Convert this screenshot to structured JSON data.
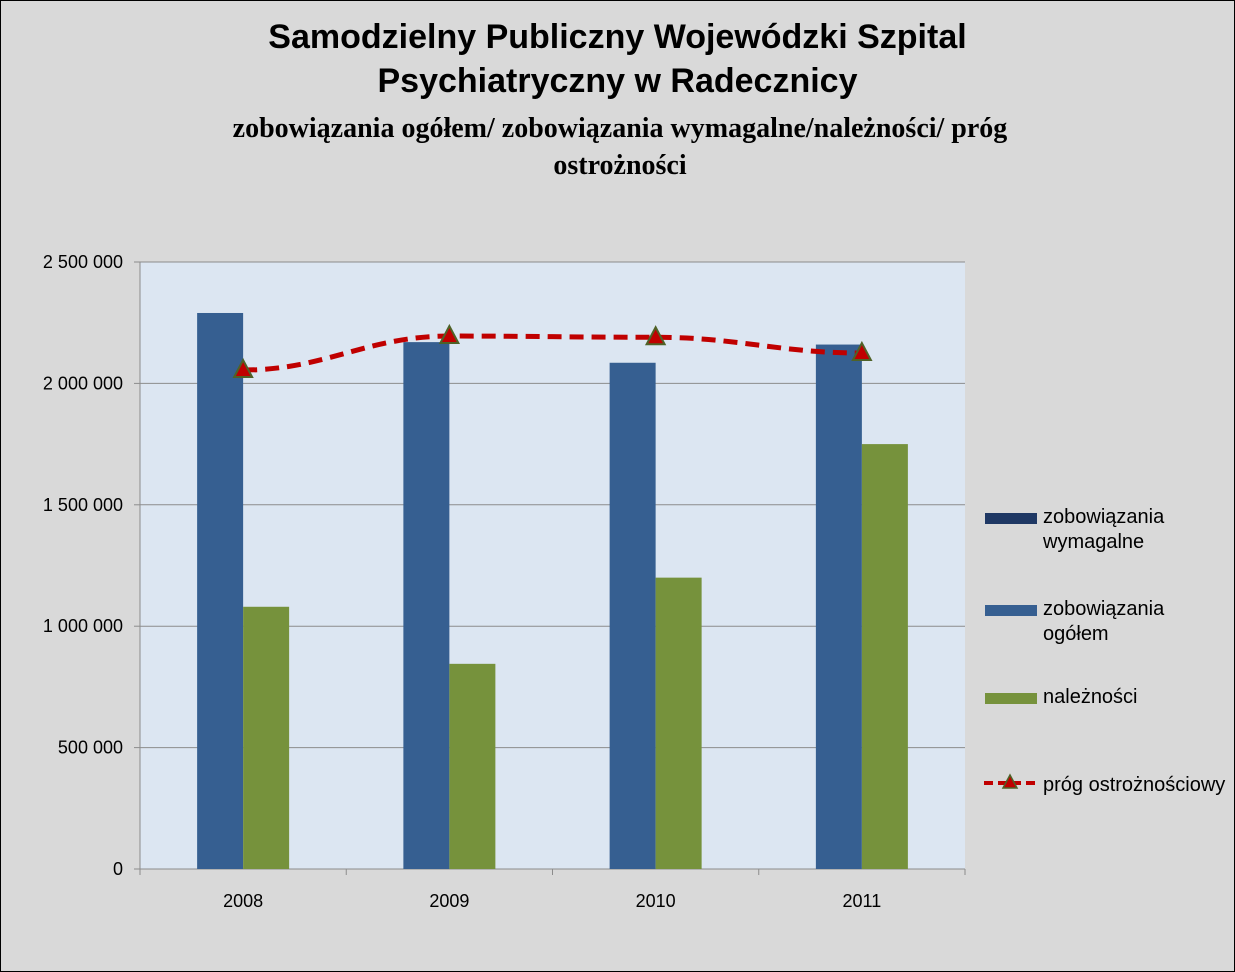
{
  "chart_data": {
    "type": "bar",
    "title_lines": [
      "Samodzielny Publiczny  Wojewódzki Szpital",
      "Psychiatryczny w Radecznicy"
    ],
    "subtitle_lines": [
      "zobowiązania ogółem/ zobowiązania wymagalne/należności/  próg",
      "ostrożności"
    ],
    "categories": [
      "2008",
      "2009",
      "2010",
      "2011"
    ],
    "ylim": [
      0,
      2500000
    ],
    "yticks": [
      0,
      500000,
      1000000,
      1500000,
      2000000,
      2500000
    ],
    "ytick_labels": [
      "0",
      "500 000",
      "1 000 000",
      "1 500 000",
      "2 000 000",
      "2 500 000"
    ],
    "grid": true,
    "legend_position": "right",
    "series": [
      {
        "name": " zobowiązania wymagalne",
        "type": "bar",
        "color": "#1f3864",
        "values": [
          0,
          0,
          0,
          0
        ]
      },
      {
        "name": " zobowiązania ogółem",
        "type": "bar",
        "color": "#365f91",
        "values": [
          2290000,
          2170000,
          2085000,
          2160000
        ]
      },
      {
        "name": "należności",
        "type": "bar",
        "color": "#76923c",
        "values": [
          1080000,
          845000,
          1200000,
          1750000
        ]
      },
      {
        "name": "próg ostrożnościowy",
        "type": "line",
        "color": "#c00000",
        "marker_color": "#4f6228",
        "values": [
          2055000,
          2195000,
          2190000,
          2125000
        ]
      }
    ]
  }
}
